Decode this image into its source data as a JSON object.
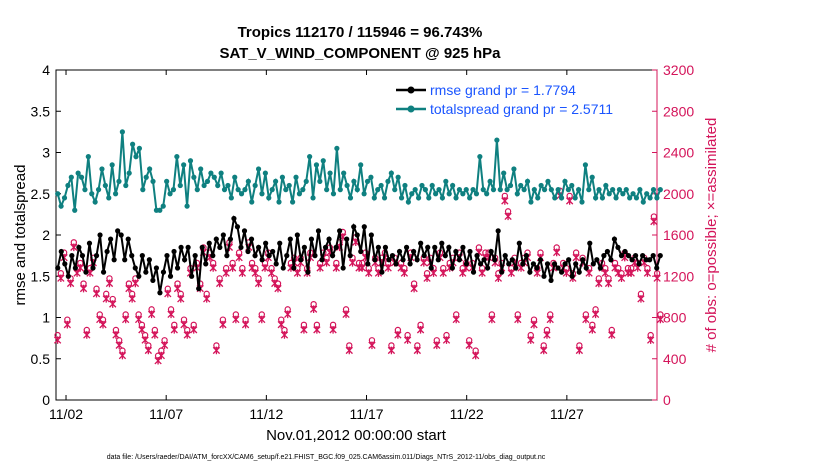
{
  "chart_data": {
    "type": "line",
    "title": [
      "Tropics 112170 / 115946 = 96.743%",
      "SAT_V_WIND_COMPONENT @ 925 hPa"
    ],
    "xlabel": "Nov.01,2012 00:00:00 start",
    "ylabel": "rmse and totalspread",
    "y2label": "# of obs: o=possible; ×=assimilated",
    "footnote": "data file: /Users/raeder/DAI/ATM_forcXX/CAM6_setup/f.e21.FHIST_BGC.f09_025.CAM6assim.011/Diags_NTrS_2012-11/obs_diag_output.nc",
    "x_ticks": [
      {
        "value": 2,
        "label": "11/02"
      },
      {
        "value": 7,
        "label": "11/07"
      },
      {
        "value": 12,
        "label": "11/12"
      },
      {
        "value": 17,
        "label": "11/17"
      },
      {
        "value": 22,
        "label": "11/22"
      },
      {
        "value": 27,
        "label": "11/27"
      }
    ],
    "xlim": [
      1.5,
      31.5
    ],
    "ylim": [
      0,
      4
    ],
    "y_ticks": [
      "0",
      "0.5",
      "1",
      "1.5",
      "2",
      "2.5",
      "3",
      "3.5",
      "4"
    ],
    "y2lim": [
      0,
      3200
    ],
    "y2_ticks": [
      "0",
      "400",
      "800",
      "1200",
      "1600",
      "2000",
      "2400",
      "2800",
      "3200"
    ],
    "grid": false,
    "legend_position": "top-right",
    "colors": {
      "rmse": "#000000",
      "spread": "#0f8080",
      "obs": "#d4145a",
      "legend_text": "#1a55ff"
    },
    "series": [
      {
        "name": "rmse grand pr = 1.7794",
        "color": "#000000",
        "axis": "left",
        "values": [
          1.6,
          1.8,
          1.65,
          1.5,
          1.75,
          1.6,
          1.85,
          1.75,
          1.55,
          1.9,
          1.6,
          1.75,
          2.0,
          1.55,
          1.8,
          1.95,
          1.7,
          2.05,
          2.0,
          1.7,
          1.95,
          1.75,
          1.6,
          1.5,
          1.75,
          1.55,
          1.7,
          1.45,
          1.6,
          1.3,
          1.55,
          1.75,
          1.5,
          1.8,
          1.6,
          1.85,
          1.7,
          1.85,
          1.5,
          1.75,
          1.35,
          1.85,
          1.65,
          1.9,
          1.75,
          1.95,
          1.85,
          2.0,
          1.75,
          1.95,
          2.2,
          2.1,
          1.85,
          2.05,
          1.8,
          1.95,
          1.75,
          1.85,
          1.7,
          1.9,
          1.75,
          1.8,
          1.65,
          1.9,
          1.6,
          1.75,
          1.95,
          1.6,
          2.0,
          1.7,
          1.85,
          1.55,
          1.95,
          1.75,
          2.05,
          1.7,
          1.85,
          1.95,
          1.75,
          1.85,
          2.05,
          1.6,
          1.95,
          1.75,
          2.1,
          2.0,
          1.8,
          2.1,
          1.65,
          2.0,
          1.7,
          1.85,
          1.55,
          1.85,
          1.7,
          1.75,
          1.65,
          1.8,
          1.7,
          1.85,
          1.65,
          1.8,
          1.7,
          1.9,
          1.75,
          1.85,
          1.6,
          1.85,
          1.7,
          1.9,
          1.75,
          1.85,
          1.6,
          1.8,
          1.7,
          1.85,
          1.65,
          1.8,
          1.55,
          1.75,
          1.65,
          1.7,
          1.6,
          1.8,
          1.7,
          2.05,
          1.55,
          1.75,
          1.65,
          1.7,
          1.6,
          1.9,
          1.65,
          1.75,
          1.55,
          1.65,
          1.6,
          1.7,
          1.5,
          1.65,
          1.45,
          1.65,
          1.6,
          1.55,
          1.65,
          1.7,
          1.5,
          1.65,
          1.55,
          1.7,
          1.6,
          1.9,
          1.65,
          1.7,
          1.6,
          1.75,
          1.8,
          1.7,
          1.95,
          1.85,
          1.75,
          1.8,
          1.75,
          1.7,
          1.75,
          1.65,
          1.75,
          1.7,
          1.7,
          1.75,
          1.6,
          1.75
        ]
      },
      {
        "name": "totalspread grand pr = 2.5711",
        "color": "#0f8080",
        "axis": "left",
        "values": [
          2.5,
          2.35,
          2.45,
          2.6,
          2.7,
          2.3,
          2.75,
          2.7,
          2.55,
          2.95,
          2.5,
          2.4,
          2.55,
          2.8,
          2.6,
          2.45,
          2.85,
          2.5,
          2.65,
          3.25,
          2.6,
          2.75,
          3.1,
          2.95,
          3.05,
          2.55,
          2.7,
          2.8,
          2.65,
          2.3,
          2.3,
          2.35,
          2.65,
          2.5,
          2.55,
          2.95,
          2.6,
          2.85,
          2.35,
          2.9,
          2.7,
          2.55,
          2.8,
          2.6,
          2.65,
          2.75,
          2.7,
          2.6,
          2.75,
          2.55,
          2.6,
          2.45,
          2.7,
          2.55,
          2.5,
          2.55,
          2.65,
          2.4,
          2.6,
          2.8,
          2.5,
          2.75,
          2.45,
          2.55,
          2.65,
          2.4,
          2.7,
          2.55,
          2.6,
          2.4,
          2.7,
          2.5,
          2.55,
          2.65,
          2.95,
          2.45,
          2.85,
          2.65,
          2.9,
          2.55,
          2.75,
          2.5,
          3.05,
          2.55,
          2.75,
          2.6,
          2.45,
          2.65,
          2.55,
          2.85,
          2.5,
          2.65,
          2.7,
          2.45,
          2.55,
          2.6,
          2.45,
          2.65,
          2.75,
          2.55,
          2.7,
          2.45,
          2.6,
          2.4,
          2.5,
          2.55,
          2.45,
          2.6,
          2.55,
          2.45,
          2.6,
          2.5,
          2.55,
          2.45,
          2.65,
          2.5,
          2.6,
          2.45,
          2.55,
          2.5,
          2.55,
          2.45,
          2.55,
          2.5,
          2.95,
          2.55,
          2.5,
          2.65,
          2.55,
          3.15,
          2.55,
          2.75,
          2.55,
          2.6,
          2.8,
          2.5,
          2.6,
          2.55,
          2.65,
          2.4,
          2.55,
          2.45,
          2.6,
          2.55,
          2.65,
          2.55,
          2.45,
          2.55,
          2.45,
          2.65,
          2.55,
          2.6,
          2.45,
          2.55,
          2.4,
          2.85,
          2.55,
          2.7,
          2.45,
          2.55,
          2.45,
          2.6,
          2.5,
          2.55,
          2.45,
          2.55,
          2.5,
          2.55,
          2.45,
          2.5,
          2.45,
          2.55,
          2.4,
          2.5,
          2.45,
          2.55,
          2.45,
          2.55
        ]
      }
    ],
    "obs_counts": {
      "axis": "right",
      "values": [
        600,
        1200,
        1400,
        750,
        1150,
        1500,
        1250,
        1300,
        1100,
        650,
        1250,
        1350,
        1050,
        800,
        750,
        1000,
        1150,
        950,
        650,
        550,
        450,
        800,
        1100,
        1000,
        1150,
        800,
        700,
        600,
        500,
        850,
        650,
        400,
        450,
        550,
        1050,
        850,
        700,
        1100,
        1000,
        750,
        650,
        1250,
        700,
        1300,
        1100,
        1450,
        1000,
        1400,
        1300,
        500,
        1150,
        750,
        1250,
        1500,
        1300,
        800,
        1400,
        1250,
        750,
        1500,
        1300,
        1250,
        1150,
        800,
        1300,
        1400,
        1250,
        1150,
        1100,
        750,
        650,
        850,
        1300,
        1350,
        1250,
        1350,
        700,
        1250,
        1400,
        900,
        700,
        1300,
        1400,
        1350,
        1450,
        700,
        1300,
        1500,
        1600,
        850,
        500,
        1350,
        1550,
        1300,
        1300,
        1400,
        1250,
        550,
        1350,
        1250,
        1350,
        1400,
        1300,
        500,
        1350,
        650,
        1300,
        1250,
        600,
        1400,
        1100,
        500,
        700,
        1350,
        1200,
        1350,
        1250,
        550,
        1400,
        1250,
        600,
        1300,
        1350,
        800,
        1400,
        1250,
        1300,
        550,
        1300,
        450,
        1450,
        1250,
        1400,
        1400,
        800,
        1350,
        1200,
        1300,
        1950,
        1800,
        1250,
        1350,
        800,
        1300,
        1350,
        1400,
        600,
        750,
        1250,
        1400,
        500,
        650,
        800,
        1300,
        1450,
        2000,
        1300,
        1250,
        1950,
        1200,
        1400,
        500,
        1350,
        800,
        1250,
        700,
        850,
        1150,
        1300,
        1250,
        1150,
        650,
        1300,
        1250,
        1200,
        1400,
        1250,
        1250,
        1350,
        1300,
        1000,
        1350,
        1250,
        600,
        1750,
        1200,
        800
      ]
    }
  }
}
